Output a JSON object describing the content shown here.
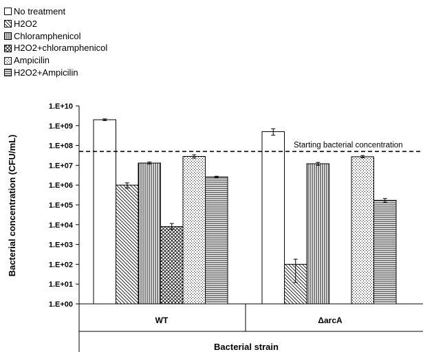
{
  "chart_data": {
    "type": "bar",
    "scale": "log10",
    "ylabel": "Bacterial concentration (CFU/mL)",
    "xlabel": "Bacterial strain",
    "ylim": [
      1,
      10000000000
    ],
    "yticks": [
      "1.E+00",
      "1.E+01",
      "1.E+02",
      "1.E+03",
      "1.E+04",
      "1.E+05",
      "1.E+06",
      "1.E+07",
      "1.E+08",
      "1.E+09",
      "1.E+10"
    ],
    "categories": [
      "WT",
      "ΔarcA"
    ],
    "series": [
      {
        "name": "No treatment",
        "pattern": "none",
        "values": [
          2000000000,
          500000000
        ],
        "err_low": [
          1800000000,
          330000000
        ],
        "err_high": [
          2200000000,
          700000000
        ]
      },
      {
        "name": "H2O2",
        "pattern": "diag",
        "values": [
          1000000,
          100
        ],
        "err_low": [
          700000,
          12
        ],
        "err_high": [
          1300000,
          180
        ]
      },
      {
        "name": "Chloramphenicol",
        "pattern": "vert",
        "values": [
          13000000,
          12000000
        ],
        "err_low": [
          11500000,
          10000000
        ],
        "err_high": [
          14500000,
          14000000
        ]
      },
      {
        "name": "H2O2+chloramphenicol",
        "pattern": "cross",
        "values": [
          8000,
          1
        ],
        "err_low": [
          5800,
          null
        ],
        "err_high": [
          11500,
          null
        ]
      },
      {
        "name": "Ampicilin",
        "pattern": "dots",
        "values": [
          28000000,
          27000000
        ],
        "err_low": [
          23000000,
          24000000
        ],
        "err_high": [
          34000000,
          31000000
        ]
      },
      {
        "name": "H2O2+Ampicilin",
        "pattern": "horiz",
        "values": [
          2600000,
          170000
        ],
        "err_low": [
          2400000,
          135000
        ],
        "err_high": [
          2800000,
          210000
        ]
      }
    ],
    "reference_line": {
      "value": 50000000,
      "label": "Starting bacterial concentration",
      "style": "dashed"
    },
    "grid": false,
    "legend_position": "top-left"
  }
}
